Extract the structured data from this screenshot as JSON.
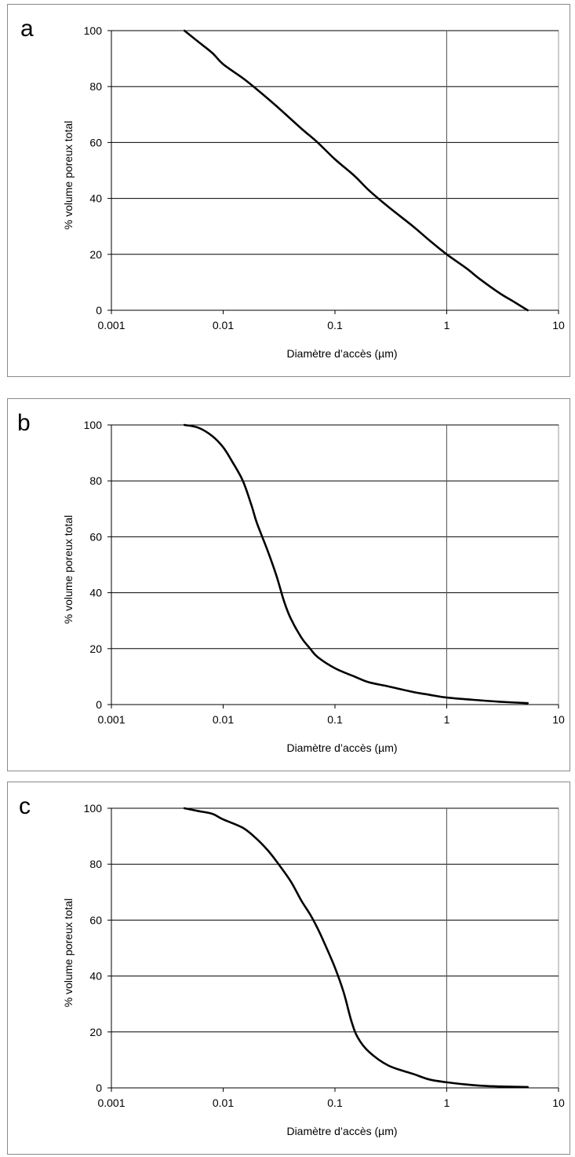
{
  "chart_data": [
    {
      "type": "line",
      "panel_label": "a",
      "xlabel": "Diamètre d’accès (µm)",
      "ylabel": "% volume poreux total",
      "x_scale": "log",
      "xlim": [
        0.001,
        10
      ],
      "ylim": [
        0,
        100
      ],
      "x_ticks": [
        "0.001",
        "0.01",
        "0.1",
        "1",
        "10"
      ],
      "y_ticks": [
        "0",
        "20",
        "40",
        "60",
        "80",
        "100"
      ],
      "grid": "horizontal major gridlines; vertical line at x = 1",
      "series": [
        {
          "x": [
            0.0045,
            0.006,
            0.008,
            0.01,
            0.015,
            0.02,
            0.03,
            0.05,
            0.07,
            0.1,
            0.15,
            0.2,
            0.3,
            0.5,
            0.7,
            1,
            1.5,
            2,
            3,
            4,
            5.3
          ],
          "y": [
            100,
            96,
            92,
            88,
            83,
            79,
            73,
            65,
            60,
            54,
            48,
            43,
            37,
            30,
            25,
            20,
            15,
            11,
            6,
            3,
            0
          ],
          "color": "#000000"
        }
      ]
    },
    {
      "type": "line",
      "panel_label": "b",
      "xlabel": "Diamètre d’accès (µm)",
      "ylabel": "% volume poreux total",
      "x_scale": "log",
      "xlim": [
        0.001,
        10
      ],
      "ylim": [
        0,
        100
      ],
      "x_ticks": [
        "0.001",
        "0.01",
        "0.1",
        "1",
        "10"
      ],
      "y_ticks": [
        "0",
        "20",
        "40",
        "60",
        "80",
        "100"
      ],
      "grid": "horizontal major gridlines; vertical line at x = 1",
      "series": [
        {
          "x": [
            0.0045,
            0.006,
            0.008,
            0.01,
            0.012,
            0.015,
            0.018,
            0.02,
            0.025,
            0.03,
            0.035,
            0.04,
            0.05,
            0.06,
            0.07,
            0.1,
            0.15,
            0.2,
            0.3,
            0.5,
            0.7,
            1,
            2,
            3,
            5.3
          ],
          "y": [
            100,
            99,
            96,
            92,
            87,
            80,
            71,
            65,
            55,
            46,
            37,
            31,
            24,
            20,
            17,
            13,
            10,
            8,
            6.5,
            4.5,
            3.5,
            2.5,
            1.5,
            1,
            0.5
          ],
          "color": "#000000"
        }
      ]
    },
    {
      "type": "line",
      "panel_label": "c",
      "xlabel": "Diamètre d’accès (µm)",
      "ylabel": "% volume poreux total",
      "x_scale": "log",
      "xlim": [
        0.001,
        10
      ],
      "ylim": [
        0,
        100
      ],
      "x_ticks": [
        "0.001",
        "0.01",
        "0.1",
        "1",
        "10"
      ],
      "y_ticks": [
        "0",
        "20",
        "40",
        "60",
        "80",
        "100"
      ],
      "grid": "horizontal major gridlines; vertical line at x = 1",
      "series": [
        {
          "x": [
            0.0045,
            0.006,
            0.008,
            0.01,
            0.015,
            0.02,
            0.025,
            0.03,
            0.04,
            0.05,
            0.06,
            0.07,
            0.08,
            0.1,
            0.12,
            0.14,
            0.16,
            0.2,
            0.3,
            0.5,
            0.7,
            1,
            1.5,
            2,
            3,
            5.3
          ],
          "y": [
            100,
            99,
            98,
            96,
            93,
            89,
            85,
            81,
            74,
            67,
            62,
            57,
            52,
            43,
            34,
            24,
            18,
            13,
            8,
            5,
            3,
            2,
            1.2,
            0.8,
            0.5,
            0.3
          ],
          "color": "#000000"
        }
      ]
    }
  ]
}
